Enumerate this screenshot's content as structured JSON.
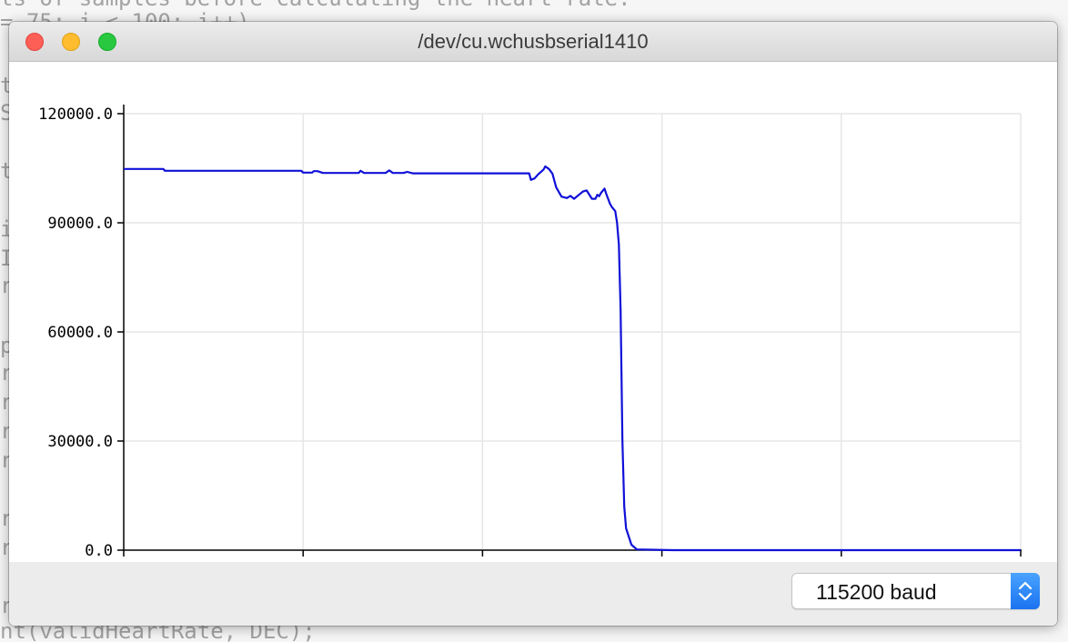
{
  "background_editor": {
    "lines": [
      "ts of samples before calculating the heart rate.",
      "= 75; i < 100; i++)",
      "t",
      "S",
      "t",
      "i",
      "I",
      "r",
      "p",
      "r",
      "r",
      "r",
      "r",
      "r",
      "r",
      "r",
      "nt(validHeartRate, DEC);"
    ]
  },
  "window": {
    "title": "/dev/cu.wchusbserial1410",
    "traffic_lights": [
      "close",
      "minimize",
      "zoom"
    ],
    "colors": {
      "close": "#fd5f57",
      "minimize": "#febc2e",
      "zoom": "#28c840"
    }
  },
  "plotter": {
    "baud_label": "115200 baud"
  },
  "chart_data": {
    "type": "line",
    "title": "",
    "xlabel": "",
    "ylabel": "",
    "xlim": [
      4794,
      5294
    ],
    "ylim": [
      0,
      120000
    ],
    "x_ticks": [
      "4794",
      "4894",
      "4994",
      "5094",
      "5194",
      "5294"
    ],
    "y_ticks": [
      "120000.0",
      "90000.0",
      "60000.0",
      "30000.0",
      "0.0"
    ],
    "grid": true,
    "series": [
      {
        "color": "#1010d8",
        "x": [
          4794,
          4816,
          4817,
          4893,
          4894,
          4899,
          4900,
          4902,
          4905,
          4907,
          4925,
          4926,
          4928,
          4930,
          4940,
          4942,
          4944,
          4950,
          4952,
          4955,
          5020,
          5021,
          5023,
          5025,
          5028,
          5029,
          5031,
          5033,
          5035,
          5038,
          5041,
          5043,
          5045,
          5048,
          5050,
          5052,
          5055,
          5057,
          5058,
          5059,
          5060,
          5062,
          5063,
          5065,
          5066,
          5067,
          5068,
          5069,
          5070,
          5071,
          5072,
          5073,
          5074,
          5077,
          5080,
          5100,
          5294
        ],
        "values": [
          104800,
          104800,
          104300,
          104300,
          103800,
          103800,
          104200,
          104200,
          103700,
          103700,
          103700,
          104300,
          103700,
          103700,
          103700,
          104400,
          103700,
          103700,
          104000,
          103600,
          103600,
          101800,
          102200,
          103300,
          104600,
          105500,
          104800,
          103500,
          99800,
          97200,
          96800,
          97400,
          96600,
          97800,
          98600,
          98900,
          96600,
          96600,
          97700,
          97300,
          98200,
          99400,
          97900,
          95300,
          94400,
          93800,
          93200,
          90000,
          84000,
          66000,
          30000,
          12000,
          6000,
          1500,
          200,
          0,
          0
        ]
      }
    ]
  }
}
